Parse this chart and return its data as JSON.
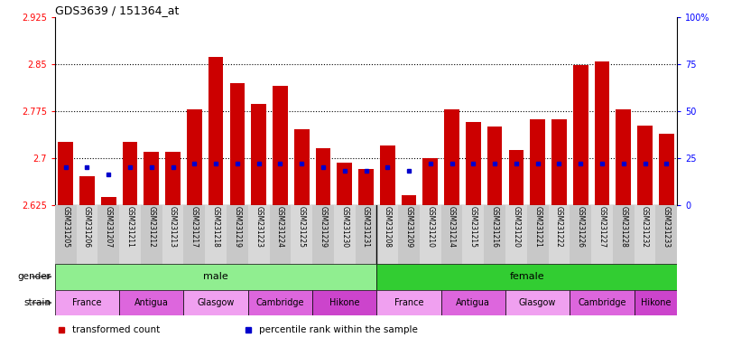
{
  "title": "GDS3639 / 151364_at",
  "samples": [
    "GSM231205",
    "GSM231206",
    "GSM231207",
    "GSM231211",
    "GSM231212",
    "GSM231213",
    "GSM231217",
    "GSM231218",
    "GSM231219",
    "GSM231223",
    "GSM231224",
    "GSM231225",
    "GSM231229",
    "GSM231230",
    "GSM231231",
    "GSM231208",
    "GSM231209",
    "GSM231210",
    "GSM231214",
    "GSM231215",
    "GSM231216",
    "GSM231220",
    "GSM231221",
    "GSM231222",
    "GSM231226",
    "GSM231227",
    "GSM231228",
    "GSM231232",
    "GSM231233"
  ],
  "bar_values": [
    2.725,
    2.67,
    2.638,
    2.725,
    2.71,
    2.71,
    2.778,
    2.862,
    2.82,
    2.786,
    2.816,
    2.746,
    2.716,
    2.692,
    2.682,
    2.72,
    2.64,
    2.7,
    2.778,
    2.758,
    2.75,
    2.712,
    2.762,
    2.762,
    2.848,
    2.854,
    2.778,
    2.752,
    2.738
  ],
  "percentile_values": [
    20,
    20,
    16,
    20,
    20,
    20,
    22,
    22,
    22,
    22,
    22,
    22,
    20,
    18,
    18,
    20,
    18,
    22,
    22,
    22,
    22,
    22,
    22,
    22,
    22,
    22,
    22,
    22,
    22
  ],
  "ymin": 2.625,
  "ymax": 2.925,
  "yticks": [
    2.625,
    2.7,
    2.775,
    2.85,
    2.925
  ],
  "ytick_labels": [
    "2.625",
    "2.7",
    "2.775",
    "2.85",
    "2.925"
  ],
  "y2min": 0,
  "y2max": 100,
  "y2ticks": [
    0,
    25,
    50,
    75,
    100
  ],
  "y2tick_labels": [
    "0",
    "25",
    "50",
    "75",
    "100%"
  ],
  "bar_color": "#cc0000",
  "percentile_color": "#0000cc",
  "hgrid_at": [
    2.7,
    2.775,
    2.85
  ],
  "male_color": "#90ee90",
  "female_color": "#00cc00",
  "gender_groups": [
    {
      "label": "male",
      "start": 0,
      "end": 14,
      "color": "#90ee90"
    },
    {
      "label": "female",
      "start": 15,
      "end": 28,
      "color": "#32cd32"
    }
  ],
  "strain_groups": [
    {
      "label": "France",
      "start": 0,
      "end": 2,
      "color": "#f0a0f0"
    },
    {
      "label": "Antigua",
      "start": 3,
      "end": 5,
      "color": "#dd66dd"
    },
    {
      "label": "Glasgow",
      "start": 6,
      "end": 8,
      "color": "#f0a0f0"
    },
    {
      "label": "Cambridge",
      "start": 9,
      "end": 11,
      "color": "#dd66dd"
    },
    {
      "label": "Hikone",
      "start": 12,
      "end": 14,
      "color": "#cc44cc"
    },
    {
      "label": "France",
      "start": 15,
      "end": 17,
      "color": "#f0a0f0"
    },
    {
      "label": "Antigua",
      "start": 18,
      "end": 20,
      "color": "#dd66dd"
    },
    {
      "label": "Glasgow",
      "start": 21,
      "end": 23,
      "color": "#f0a0f0"
    },
    {
      "label": "Cambridge",
      "start": 24,
      "end": 26,
      "color": "#dd66dd"
    },
    {
      "label": "Hikone",
      "start": 27,
      "end": 28,
      "color": "#cc44cc"
    }
  ],
  "legend_items": [
    {
      "label": "transformed count",
      "color": "#cc0000"
    },
    {
      "label": "percentile rank within the sample",
      "color": "#0000cc"
    }
  ]
}
